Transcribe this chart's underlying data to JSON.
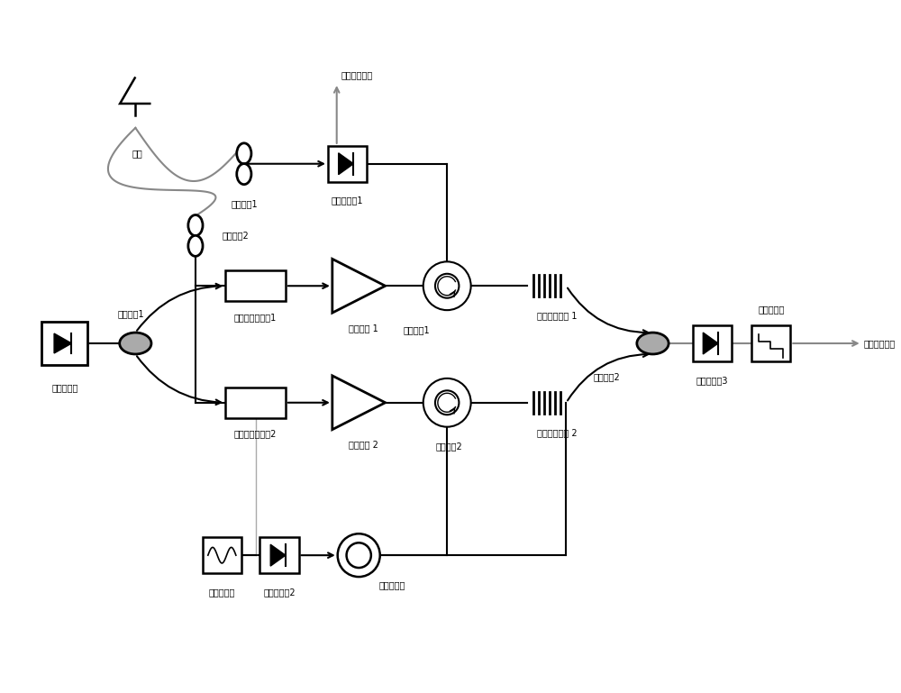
{
  "bg_color": "#ffffff",
  "line_color": "#000000",
  "gray_color": "#888888",
  "fig_width": 10.0,
  "fig_height": 7.69,
  "labels": {
    "antenna": "天线",
    "orig_signal_out": "原频信号输出",
    "ecoupler1": "电耦合器1",
    "ecoupler2": "电耦合器2",
    "photodetector1": "光电探测全1",
    "optical_ring1": "光环形器1",
    "phase_fiber1": "相移光纤光栅 1",
    "ocoupler1": "光耦合器1",
    "eomod1": "电光相位调制全1",
    "oamp1": "光放大器 1",
    "laser": "可调激光器",
    "ocoupler2": "光耦合器2",
    "eomod2": "电光相位调制全2",
    "oamp2": "光放大器 2",
    "optical_ring2": "光环形器2",
    "phase_fiber2": "相移光纤光栅 2",
    "narrowband": "穿带滤波器",
    "photodetector2": "光电探测全2",
    "fiber_delay": "光纤延时线",
    "photodetector3": "光电探测全3",
    "lowpass": "低通滤波器",
    "if_out": "中频信号输出"
  }
}
